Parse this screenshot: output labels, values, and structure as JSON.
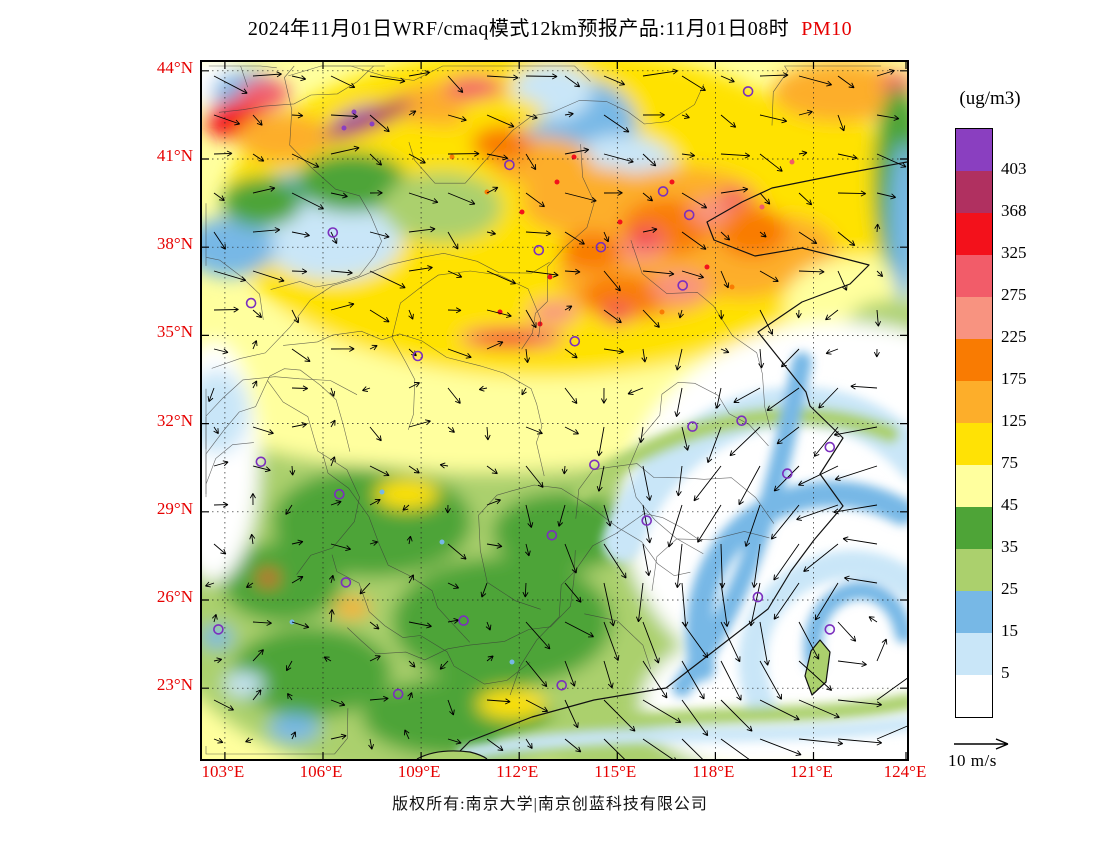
{
  "title": {
    "main": "2024年11月01日WRF/cmaq模式12km预报产品:11月01日08时",
    "pollutant": "PM10",
    "pollutant_color": "#e60000"
  },
  "colorbar": {
    "unit": "(ug/m3)",
    "tick_labels": [
      "403",
      "368",
      "325",
      "275",
      "225",
      "175",
      "125",
      "75",
      "45",
      "35",
      "25",
      "15",
      "5"
    ],
    "band_colors_top_to_bottom": [
      "#8a3fc0",
      "#b03060",
      "#f3111b",
      "#f25c69",
      "#f89380",
      "#f97b02",
      "#fdae2a",
      "#ffe205",
      "#ffff9e",
      "#4ea437",
      "#abd06d",
      "#77b8e6",
      "#c9e6f8",
      "#ffffff"
    ]
  },
  "axes": {
    "label_color": "#e60000",
    "lat_ticks": [
      {
        "value": 44,
        "label": "44°N"
      },
      {
        "value": 41,
        "label": "41°N"
      },
      {
        "value": 38,
        "label": "38°N"
      },
      {
        "value": 35,
        "label": "35°N"
      },
      {
        "value": 32,
        "label": "32°N"
      },
      {
        "value": 29,
        "label": "29°N"
      },
      {
        "value": 26,
        "label": "26°N"
      },
      {
        "value": 23,
        "label": "23°N"
      }
    ],
    "lon_ticks": [
      {
        "value": 103,
        "label": "103°E"
      },
      {
        "value": 106,
        "label": "106°E"
      },
      {
        "value": 109,
        "label": "109°E"
      },
      {
        "value": 112,
        "label": "112°E"
      },
      {
        "value": 115,
        "label": "115°E"
      },
      {
        "value": 118,
        "label": "118°E"
      },
      {
        "value": 121,
        "label": "121°E"
      },
      {
        "value": 124,
        "label": "124°E"
      }
    ]
  },
  "wind": {
    "reference_label": "10 m/s",
    "cyclone_center_lon": 122.3,
    "cyclone_center_lat": 24.8
  },
  "stations": {
    "marker_color": "#7b2fbe",
    "points": [
      [
        102.8,
        25.0
      ],
      [
        103.8,
        36.1
      ],
      [
        104.1,
        30.7
      ],
      [
        106.3,
        38.5
      ],
      [
        106.5,
        29.6
      ],
      [
        106.7,
        26.6
      ],
      [
        108.3,
        22.8
      ],
      [
        108.9,
        34.3
      ],
      [
        110.3,
        25.3
      ],
      [
        111.7,
        40.8
      ],
      [
        112.6,
        37.9
      ],
      [
        113.0,
        28.2
      ],
      [
        113.3,
        23.1
      ],
      [
        113.7,
        34.8
      ],
      [
        114.3,
        30.6
      ],
      [
        114.5,
        38.0
      ],
      [
        115.9,
        28.7
      ],
      [
        116.4,
        39.9
      ],
      [
        117.0,
        36.7
      ],
      [
        117.2,
        39.1
      ],
      [
        117.3,
        31.9
      ],
      [
        118.8,
        32.1
      ],
      [
        119.0,
        43.3
      ],
      [
        119.3,
        26.1
      ],
      [
        120.2,
        30.3
      ],
      [
        121.5,
        25.0
      ],
      [
        121.5,
        31.2
      ]
    ]
  },
  "footer": {
    "copyright": "版权所有:南京大学|南京创蓝科技有限公司"
  }
}
